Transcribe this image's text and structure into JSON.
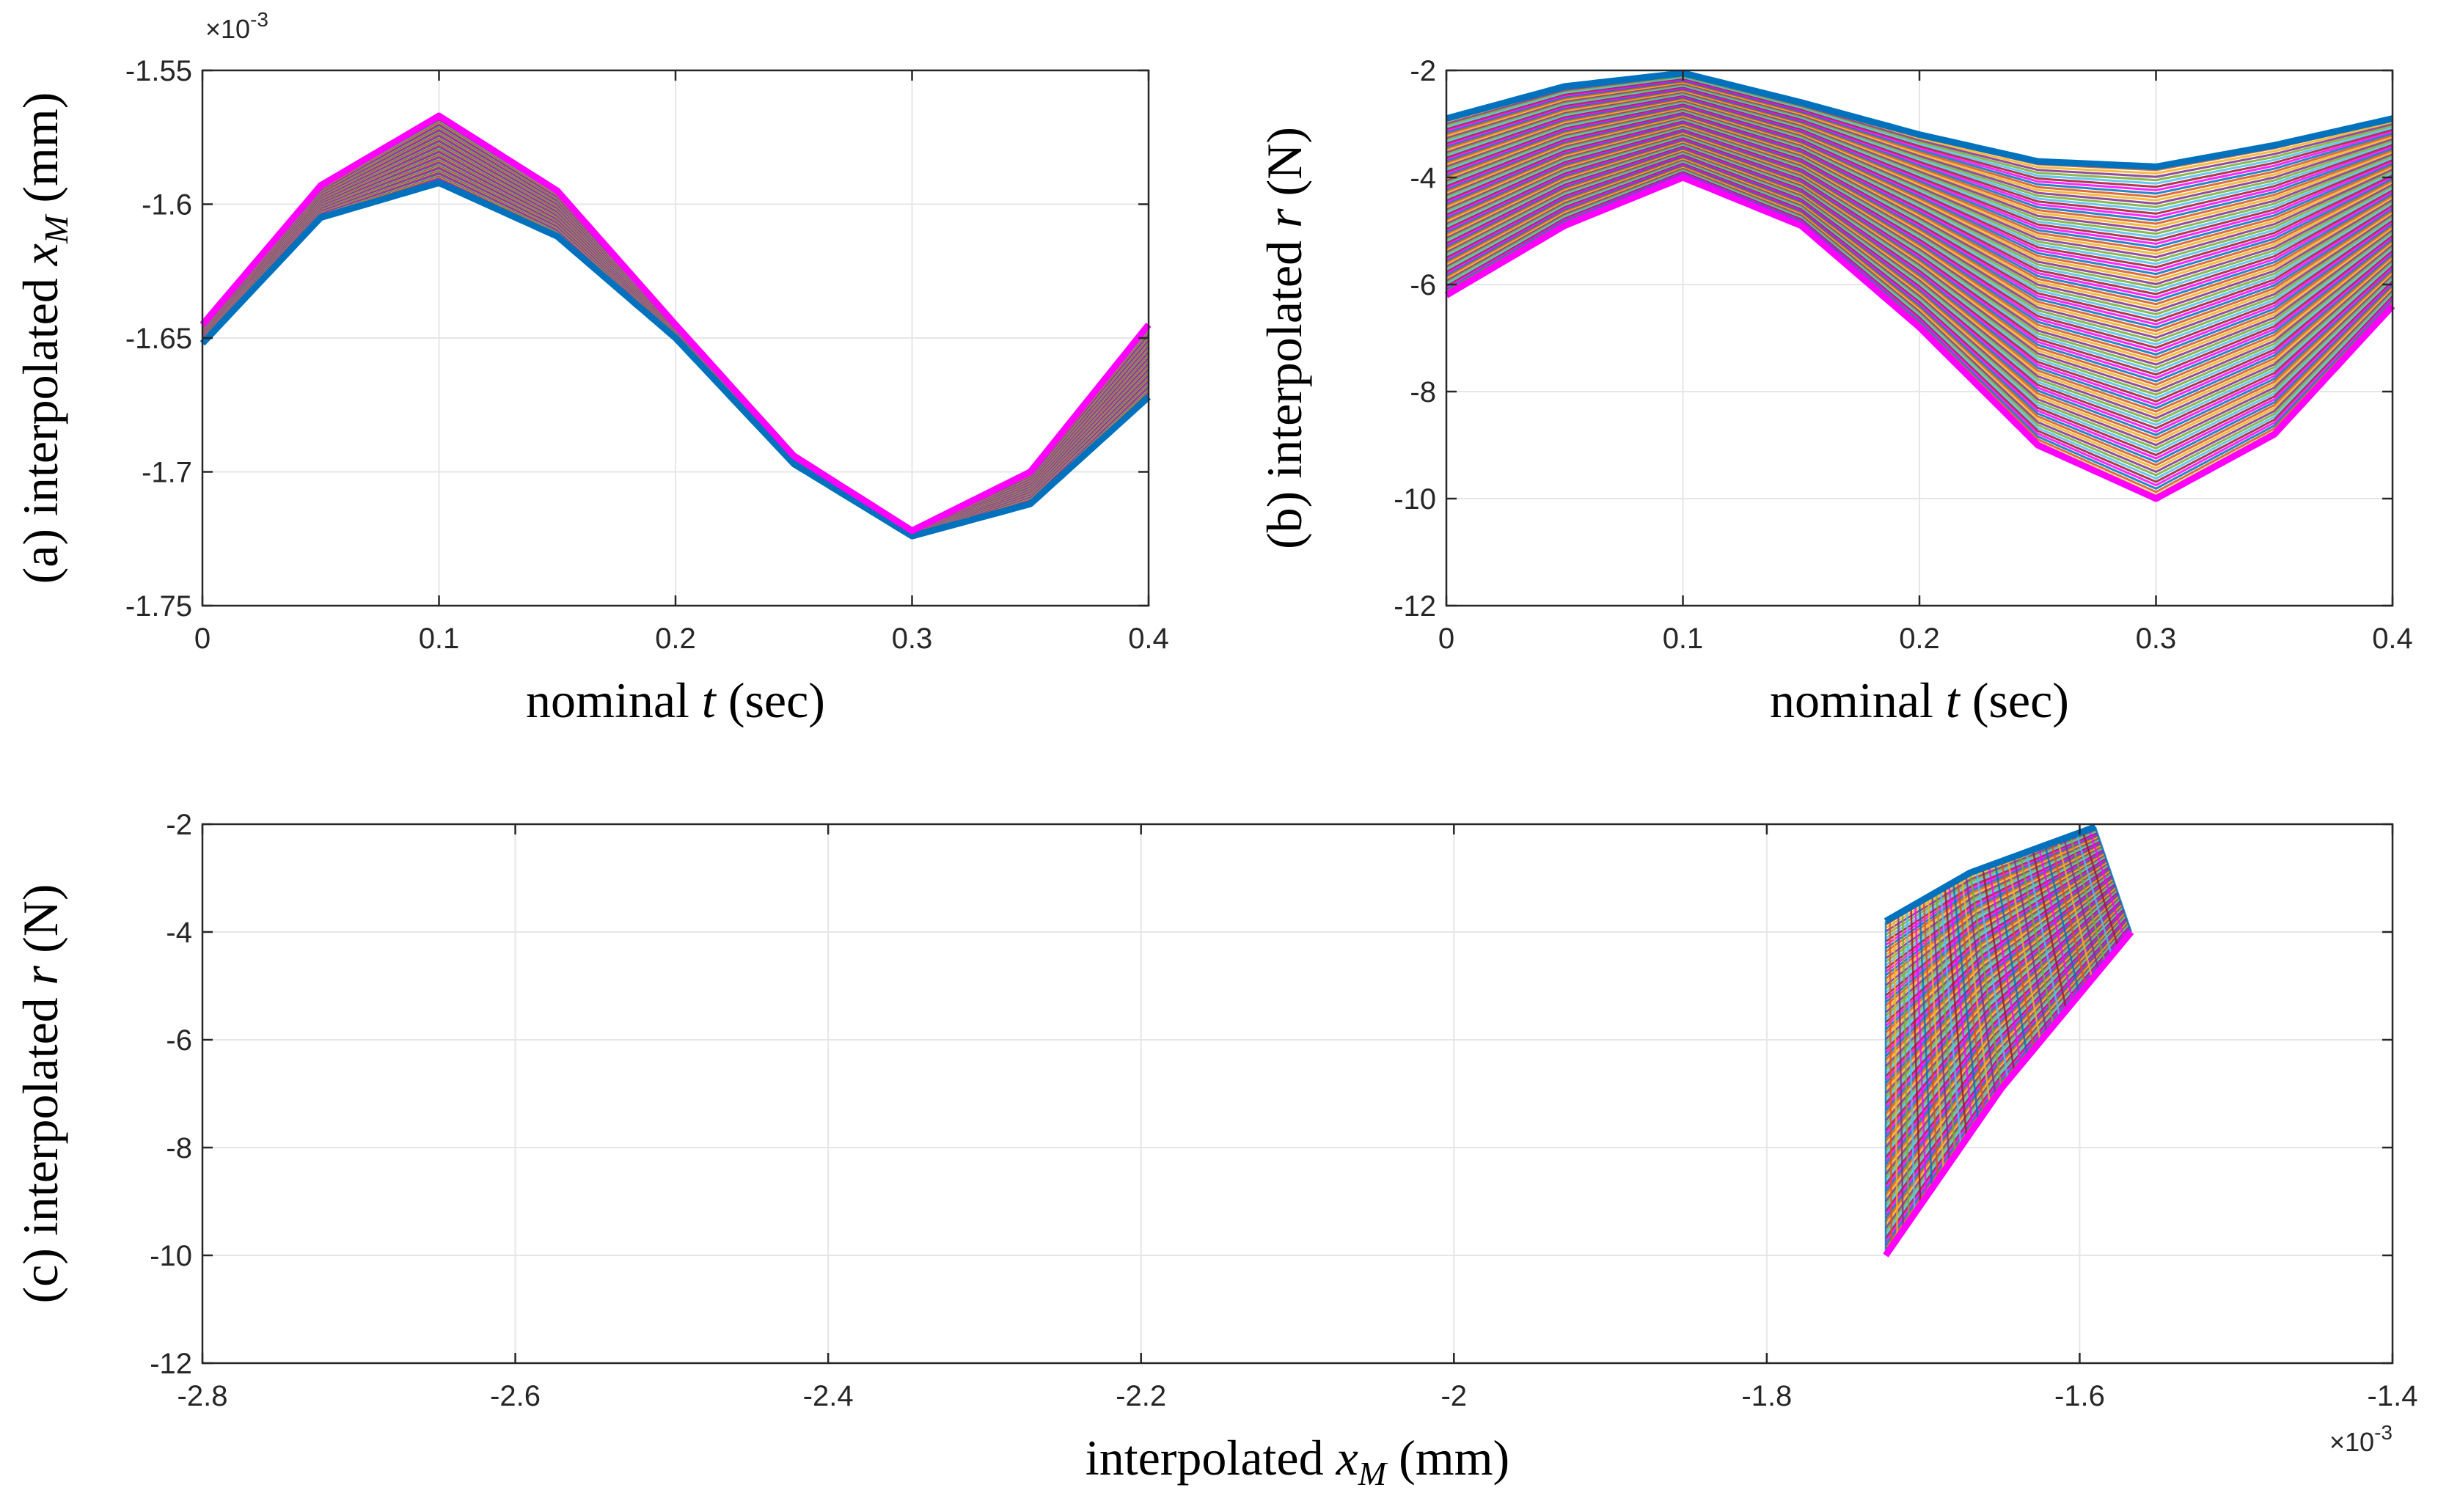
{
  "colors": {
    "palette": [
      "#0072BD",
      "#D95319",
      "#EDB120",
      "#7E2F8E",
      "#77AC30",
      "#4DBEEE",
      "#A2142F",
      "#FF00FF"
    ],
    "grid": "#e6e6e6",
    "axis": "#262626",
    "background": "#ffffff"
  },
  "chart_data": [
    {
      "id": "a",
      "type": "line",
      "ylabel_prefix": "(a) interpolated ",
      "ylabel_var": "x",
      "ylabel_sub": "M",
      "ylabel_suffix": " (mm)",
      "xlabel_prefix": "nominal ",
      "xlabel_var": "t",
      "xlabel_suffix": " (sec)",
      "exponent_label": "×10",
      "exponent_power": "-3",
      "xlim": [
        0,
        0.4
      ],
      "ylim": [
        -1.75,
        -1.55
      ],
      "y_scale": "×10^-3",
      "xticks": [
        "0",
        "0.1",
        "0.2",
        "0.3",
        "0.4"
      ],
      "xtick_values": [
        0,
        0.1,
        0.2,
        0.3,
        0.4
      ],
      "yticks": [
        "-1.55",
        "-1.6",
        "-1.65",
        "-1.7",
        "-1.75"
      ],
      "ytick_values": [
        -1.55,
        -1.6,
        -1.65,
        -1.7,
        -1.75
      ],
      "grid": true,
      "series_count": 100,
      "boundary_series": [
        {
          "x": [
            0,
            0.05,
            0.1,
            0.15,
            0.2,
            0.25,
            0.3,
            0.35,
            0.4
          ],
          "y": [
            -1.652,
            -1.605,
            -1.592,
            -1.612,
            -1.65,
            -1.697,
            -1.724,
            -1.712,
            -1.672
          ]
        },
        {
          "x": [
            0,
            0.05,
            0.1,
            0.15,
            0.2,
            0.25,
            0.3,
            0.35,
            0.4
          ],
          "y": [
            -1.645,
            -1.593,
            -1.567,
            -1.595,
            -1.645,
            -1.694,
            -1.722,
            -1.7,
            -1.645
          ]
        }
      ]
    },
    {
      "id": "b",
      "type": "line",
      "ylabel_prefix": "(b) interpolated ",
      "ylabel_var": "r",
      "ylabel_sub": "",
      "ylabel_suffix": " (N)",
      "xlabel_prefix": "nominal ",
      "xlabel_var": "t",
      "xlabel_suffix": " (sec)",
      "xlim": [
        0,
        0.4
      ],
      "ylim": [
        -12,
        -2
      ],
      "xticks": [
        "0",
        "0.1",
        "0.2",
        "0.3",
        "0.4"
      ],
      "xtick_values": [
        0,
        0.1,
        0.2,
        0.3,
        0.4
      ],
      "yticks": [
        "-2",
        "-4",
        "-6",
        "-8",
        "-10",
        "-12"
      ],
      "ytick_values": [
        -2,
        -4,
        -6,
        -8,
        -10,
        -12
      ],
      "grid": true,
      "series_count": 100,
      "boundary_series": [
        {
          "x": [
            0,
            0.05,
            0.1,
            0.15,
            0.2,
            0.25,
            0.3,
            0.35,
            0.4
          ],
          "y": [
            -2.9,
            -2.3,
            -2.05,
            -2.6,
            -3.2,
            -3.7,
            -3.8,
            -3.4,
            -2.9
          ]
        },
        {
          "x": [
            0,
            0.05,
            0.1,
            0.15,
            0.2,
            0.25,
            0.3,
            0.35,
            0.4
          ],
          "y": [
            -6.2,
            -4.9,
            -4.0,
            -4.9,
            -6.8,
            -9.0,
            -10.0,
            -8.8,
            -6.4
          ]
        }
      ]
    },
    {
      "id": "c",
      "type": "line",
      "ylabel_prefix": "(c) interpolated ",
      "ylabel_var": "r",
      "ylabel_sub": "",
      "ylabel_suffix": " (N)",
      "xlabel_prefix": "interpolated ",
      "xlabel_var": "x",
      "xlabel_sub": "M",
      "xlabel_suffix": " (mm)",
      "exponent_label": "×10",
      "exponent_power": "-3",
      "xlim": [
        -2.8,
        -1.4
      ],
      "ylim": [
        -12,
        -2
      ],
      "x_scale": "×10^-3",
      "xticks": [
        "-2.8",
        "-2.6",
        "-2.4",
        "-2.2",
        "-2",
        "-1.8",
        "-1.6",
        "-1.4"
      ],
      "xtick_values": [
        -2.8,
        -2.6,
        -2.4,
        -2.2,
        -2.0,
        -1.8,
        -1.6,
        -1.4
      ],
      "yticks": [
        "-2",
        "-4",
        "-6",
        "-8",
        "-10",
        "-12"
      ],
      "ytick_values": [
        -2,
        -4,
        -6,
        -8,
        -10,
        -12
      ],
      "grid": true,
      "series_count": 100,
      "boundary_series": [
        {
          "x": [
            -1.724,
            -1.67,
            -1.59
          ],
          "y": [
            -3.8,
            -2.9,
            -2.05
          ]
        },
        {
          "x": [
            -1.724,
            -1.65,
            -1.567
          ],
          "y": [
            -10.0,
            -6.9,
            -4.0
          ]
        }
      ]
    }
  ]
}
